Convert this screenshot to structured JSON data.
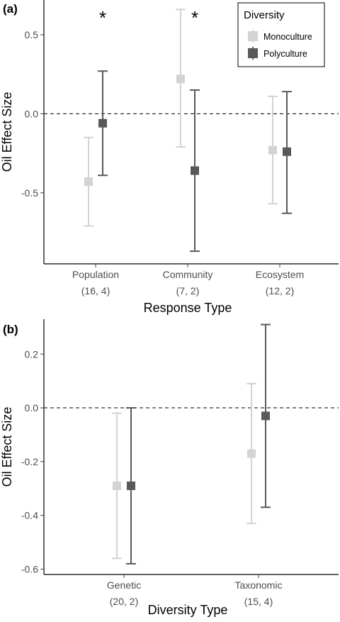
{
  "chart_data": [
    {
      "type": "scatter",
      "panel_label": "(a)",
      "xlabel": "Response Type",
      "ylabel": "Oil Effect Size",
      "categories": [
        "Population",
        "Community",
        "Ecosystem"
      ],
      "category_counts": [
        "(16, 4)",
        "(7, 2)",
        "(12, 2)"
      ],
      "yticks": [
        0.5,
        0.0,
        -0.5
      ],
      "ytick_labels": [
        "0.5",
        "0.0",
        "-0.5"
      ],
      "ylim": [
        -0.95,
        0.72
      ],
      "reference_line": 0,
      "annotations": [
        "*",
        "*"
      ],
      "series": [
        {
          "name": "Monoculture",
          "color": "#d3d3d3",
          "values": [
            -0.43,
            0.22,
            -0.23
          ],
          "lower": [
            -0.71,
            -0.21,
            -0.57
          ],
          "upper": [
            -0.15,
            0.66,
            0.11
          ]
        },
        {
          "name": "Polyculture",
          "color": "#595959",
          "values": [
            -0.06,
            -0.36,
            -0.24
          ],
          "lower": [
            -0.39,
            -0.87,
            -0.63
          ],
          "upper": [
            0.27,
            0.15,
            0.14
          ]
        }
      ],
      "legend": {
        "title": "Diversity",
        "placement": "top-right",
        "entries": [
          "Monoculture",
          "Polyculture"
        ]
      }
    },
    {
      "type": "scatter",
      "panel_label": "(b)",
      "xlabel": "Diversity Type",
      "ylabel": "Oil Effect Size",
      "categories": [
        "Genetic",
        "Taxonomic"
      ],
      "category_counts": [
        "(20, 2)",
        "(15, 4)"
      ],
      "yticks": [
        0.2,
        0.0,
        -0.2,
        -0.4,
        -0.6
      ],
      "ytick_labels": [
        "0.2",
        "0.0",
        "-0.2",
        "-0.4",
        "-0.6"
      ],
      "ylim": [
        -0.62,
        0.33
      ],
      "reference_line": 0,
      "series": [
        {
          "name": "Monoculture",
          "color": "#d3d3d3",
          "values": [
            -0.29,
            -0.17
          ],
          "lower": [
            -0.56,
            -0.43
          ],
          "upper": [
            -0.02,
            0.09
          ]
        },
        {
          "name": "Polyculture",
          "color": "#595959",
          "values": [
            -0.29,
            -0.03
          ],
          "lower": [
            -0.58,
            -0.37
          ],
          "upper": [
            0.0,
            0.31
          ]
        }
      ]
    }
  ]
}
